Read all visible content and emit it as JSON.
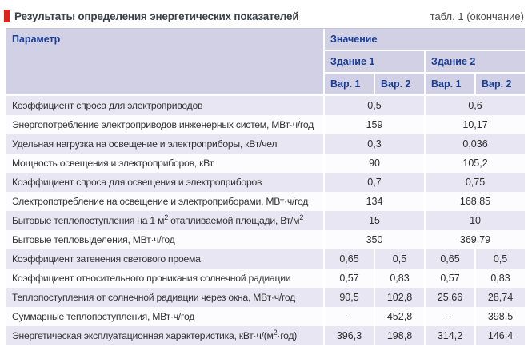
{
  "title": {
    "text": "Результаты определения энергетических показателей",
    "caption": "табл. 1 (окончание)"
  },
  "colors": {
    "accent_red": "#de231f",
    "header_bg": "#d2d0e5",
    "header_text": "#1c3d91",
    "row_stripe": "#e8e6f2",
    "row_plain": "#fcfcfe",
    "body_text": "#2e2e2e"
  },
  "table": {
    "col_param": "Параметр",
    "col_value": "Значение",
    "buildings": [
      "Здание 1",
      "Здание 2"
    ],
    "variants": [
      "Вар. 1",
      "Вар. 2",
      "Вар. 1",
      "Вар. 2"
    ],
    "rows": [
      {
        "param": "Коэффициент спроса для электроприводов",
        "merged": true,
        "values": [
          "0,5",
          "0,6"
        ]
      },
      {
        "param": "Энергопотребление электроприводов инженерных систем, МВт·ч/год",
        "merged": true,
        "values": [
          "159",
          "10,17"
        ]
      },
      {
        "param": "Удельная нагрузка на освещение и электроприборы, кВт/чел",
        "merged": true,
        "values": [
          "0,3",
          "0,036"
        ]
      },
      {
        "param": "Мощность освещения и электроприборов, кВт",
        "merged": true,
        "values": [
          "90",
          "105,2"
        ]
      },
      {
        "param": "Коэффициент спроса для освещения и электроприборов",
        "merged": true,
        "values": [
          "0,7",
          "0,75"
        ]
      },
      {
        "param": "Электропотребление на освещение и электроприборами, МВт·ч/год",
        "merged": true,
        "values": [
          "134",
          "168,85"
        ]
      },
      {
        "param": "Бытовые теплопоступления на 1 м^2 отапливаемой площади, Вт/м^2",
        "merged": true,
        "values": [
          "15",
          "10"
        ]
      },
      {
        "param": "Бытовые тепловыделения, МВт·ч/год",
        "merged": true,
        "values": [
          "350",
          "369,79"
        ]
      },
      {
        "param": "Коэффициент затенения светового проема",
        "merged": false,
        "values": [
          "0,65",
          "0,5",
          "0,65",
          "0,5"
        ]
      },
      {
        "param": "Коэффициент относительного проникания солнечной радиации",
        "merged": false,
        "values": [
          "0,57",
          "0,83",
          "0,57",
          "0,83"
        ]
      },
      {
        "param": "Теплопоступления от солнечной радиации через окна, МВт·ч/год",
        "merged": false,
        "values": [
          "90,5",
          "102,8",
          "25,66",
          "28,74"
        ]
      },
      {
        "param": "Суммарные теплопоступления, МВт·ч/год",
        "merged": false,
        "values": [
          "–",
          "452,8",
          "–",
          "398,5"
        ]
      },
      {
        "param": "Энергетическая эксплуатационная характеристика, кВт·ч/(м^2·год)",
        "merged": false,
        "values": [
          "396,3",
          "198,8",
          "314,2",
          "146,4"
        ]
      }
    ]
  }
}
